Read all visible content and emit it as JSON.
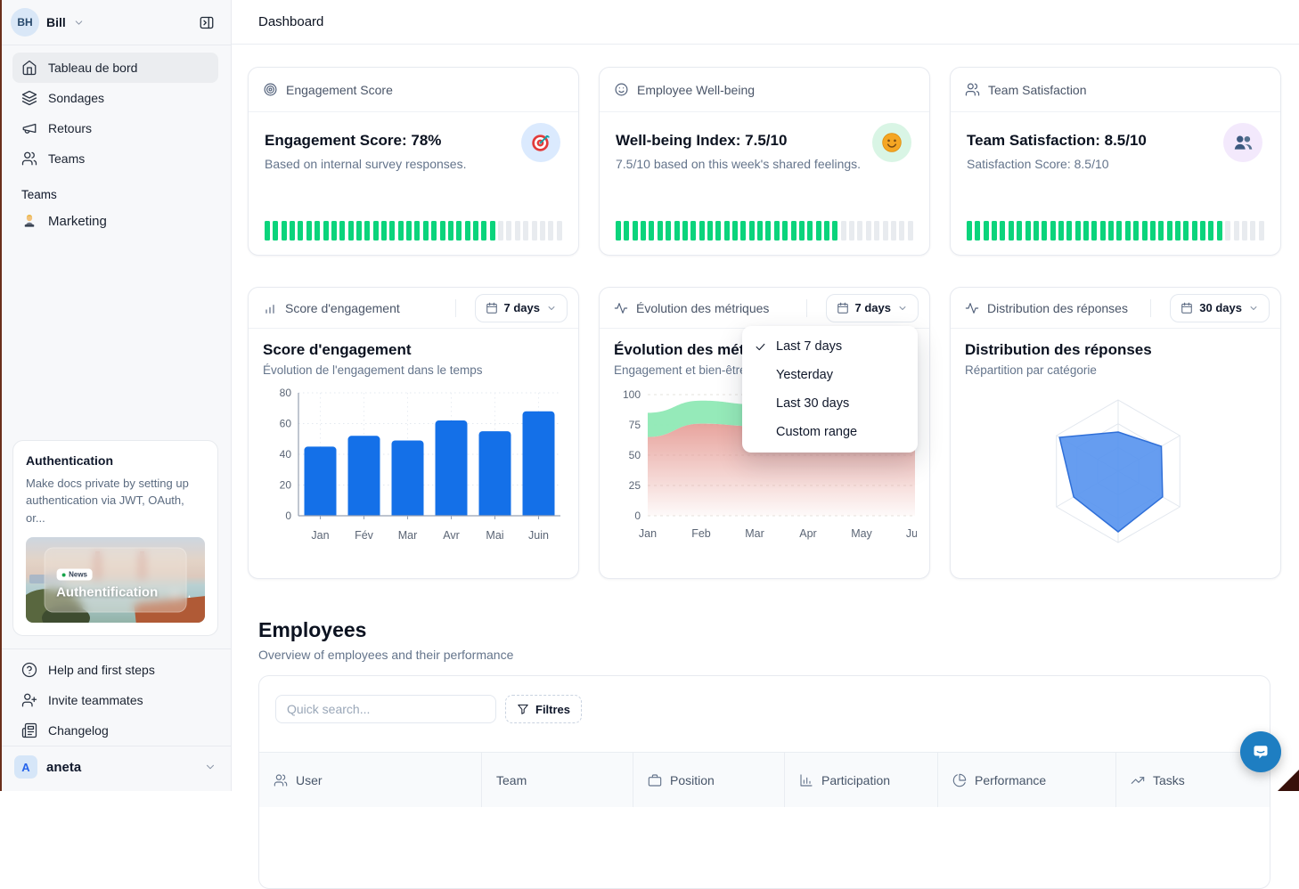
{
  "header": {
    "title": "Dashboard"
  },
  "sidebar": {
    "workspace": {
      "initials": "BH",
      "name": "Bill"
    },
    "nav": [
      {
        "label": "Tableau de bord",
        "icon": "home-icon",
        "active": true
      },
      {
        "label": "Sondages",
        "icon": "layers-icon",
        "active": false
      },
      {
        "label": "Retours",
        "icon": "megaphone-icon",
        "active": false
      },
      {
        "label": "Teams",
        "icon": "users-icon",
        "active": false
      }
    ],
    "teams": {
      "label": "Teams",
      "items": [
        {
          "label": "Marketing",
          "icon": "technologist-emoji"
        }
      ]
    },
    "promo": {
      "title": "Authentication",
      "body": "Make docs private by setting up authentication via JWT, OAuth, or...",
      "badge": "News",
      "image_caption": "Authentification"
    },
    "footer": [
      {
        "label": "Help and first steps",
        "icon": "help-circle-icon"
      },
      {
        "label": "Invite teammates",
        "icon": "user-plus-icon"
      },
      {
        "label": "Changelog",
        "icon": "newspaper-icon"
      }
    ],
    "account": {
      "initial": "A",
      "name": "aneta"
    }
  },
  "metric_cards": [
    {
      "header": "Engagement Score",
      "header_icon": "target-icon",
      "title": "Engagement Score: 78%",
      "subtitle": "Based on internal survey responses.",
      "emoji": "dart-target-emoji",
      "emoji_bg": "#dbeafe",
      "progress_total": 36,
      "progress_active": 28,
      "progress_pct": 78
    },
    {
      "header": "Employee Well-being",
      "header_icon": "smile-icon",
      "title": "Well-being Index: 7.5/10",
      "subtitle": "7.5/10 based on this week's shared feelings.",
      "emoji": "smiling-face-emoji",
      "emoji_bg": "#d9f5e5",
      "progress_total": 36,
      "progress_active": 27,
      "progress_pct": 75
    },
    {
      "header": "Team Satisfaction",
      "header_icon": "users-icon",
      "title": "Team Satisfaction: 8.5/10",
      "subtitle": "Satisfaction Score: 8.5/10",
      "emoji": "busts-emoji",
      "emoji_bg": "#f3e9fc",
      "progress_total": 36,
      "progress_active": 31,
      "progress_pct": 85
    }
  ],
  "chart_cards": [
    {
      "header": "Score d'engagement",
      "header_icon": "bar-chart-icon",
      "range": "7 days",
      "title": "Score d'engagement",
      "subtitle": "Évolution de l'engagement dans le temps"
    },
    {
      "header": "Évolution des métriques",
      "header_icon": "activity-icon",
      "range": "7 days",
      "title": "Évolution des métriques",
      "subtitle": "Engagement et bien-être"
    },
    {
      "header": "Distribution des réponses",
      "header_icon": "activity-icon",
      "range": "30 days",
      "title": "Distribution des réponses",
      "subtitle": "Répartition par catégorie"
    }
  ],
  "chart_data": [
    {
      "type": "bar",
      "title": "Score d'engagement",
      "categories": [
        "Jan",
        "Fév",
        "Mar",
        "Avr",
        "Mai",
        "Juin"
      ],
      "values": [
        45,
        52,
        49,
        62,
        55,
        68
      ],
      "ylim": [
        0,
        80
      ],
      "yticks": [
        0,
        20,
        40,
        60,
        80
      ],
      "bar_color": "#1470e8",
      "grid": "dotted",
      "legend": "none"
    },
    {
      "type": "area",
      "title": "Évolution des métriques",
      "x": [
        "Jan",
        "Feb",
        "Mar",
        "Apr",
        "May",
        "Jun"
      ],
      "series": [
        {
          "name": "upper-green",
          "color": "#8fe9b5",
          "values": [
            85,
            95,
            92,
            66,
            70,
            68
          ]
        },
        {
          "name": "lower-pink",
          "color": "#e59a93",
          "values": [
            65,
            76,
            74,
            60,
            66,
            64
          ]
        }
      ],
      "ylim": [
        0,
        100
      ],
      "yticks": [
        0,
        25,
        50,
        75,
        100
      ],
      "grid": "dashed",
      "legend": "none"
    },
    {
      "type": "radar",
      "title": "Distribution des réponses",
      "axes_count": 6,
      "values": [
        55,
        70,
        72,
        85,
        72,
        95
      ],
      "max": 100,
      "levels": 3,
      "fill_color": "#5592ee",
      "stroke_color": "#2f6fd8",
      "legend": "none"
    }
  ],
  "menu": {
    "items": [
      {
        "label": "Last 7 days",
        "checked": true
      },
      {
        "label": "Yesterday",
        "checked": false
      },
      {
        "label": "Last 30 days",
        "checked": false
      },
      {
        "label": "Custom range",
        "checked": false
      }
    ]
  },
  "employees": {
    "title": "Employees",
    "subtitle": "Overview of employees and their performance",
    "search_placeholder": "Quick search...",
    "filter_label": "Filtres",
    "columns": [
      {
        "label": "User",
        "icon": "users-icon"
      },
      {
        "label": "Team",
        "icon": "none"
      },
      {
        "label": "Position",
        "icon": "briefcase-icon"
      },
      {
        "label": "Participation",
        "icon": "chart-column-icon"
      },
      {
        "label": "Performance",
        "icon": "pie-chart-icon"
      },
      {
        "label": "Tasks",
        "icon": "trending-up-icon"
      }
    ]
  },
  "colors": {
    "progress_green": "#0bd47c",
    "progress_gray": "#e8ebef",
    "bar_blue": "#1470e8",
    "radar_blue": "#5592ee",
    "area_green": "#8fe9b5",
    "area_pink": "#e59a93",
    "chat_blue": "#1e7ec2",
    "sidebar_bg": "#f7f8fa"
  }
}
